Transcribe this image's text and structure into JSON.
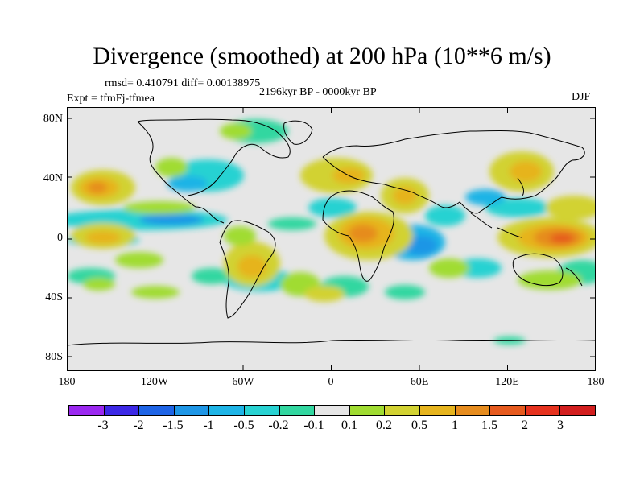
{
  "title": "Divergence (smoothed) at 200 hPa (10**6 m/s)",
  "stats": "rmsd= 0.410791 diff= 0.00138975",
  "experiment": "Expt = tfmFj-tfmea",
  "period": "2196kyr BP - 0000kyr BP",
  "season": "DJF",
  "map": {
    "projection": "cylindrical equidistant",
    "lat_range": [
      -90,
      90
    ],
    "lon_range": [
      -180,
      180
    ],
    "lat_ticks": [
      "80N",
      "40N",
      "0",
      "40S",
      "80S"
    ],
    "lon_ticks": [
      "180",
      "120W",
      "60W",
      "0",
      "60E",
      "120E",
      "180"
    ]
  },
  "colorbar": {
    "labels": [
      "-3",
      "-2",
      "-1.5",
      "-1",
      "-0.5",
      "-0.2",
      "-0.1",
      "0.1",
      "0.2",
      "0.5",
      "1",
      "1.5",
      "2",
      "3"
    ],
    "colors": [
      "#9b28f0",
      "#3c28e6",
      "#1e64e6",
      "#1e96e6",
      "#1eb4e6",
      "#28d2d2",
      "#32d7a0",
      "#e6e6e6",
      "#a0dc32",
      "#d2d232",
      "#e6b41e",
      "#e68c1e",
      "#e65a1e",
      "#e6321e",
      "#d21e1e"
    ]
  }
}
